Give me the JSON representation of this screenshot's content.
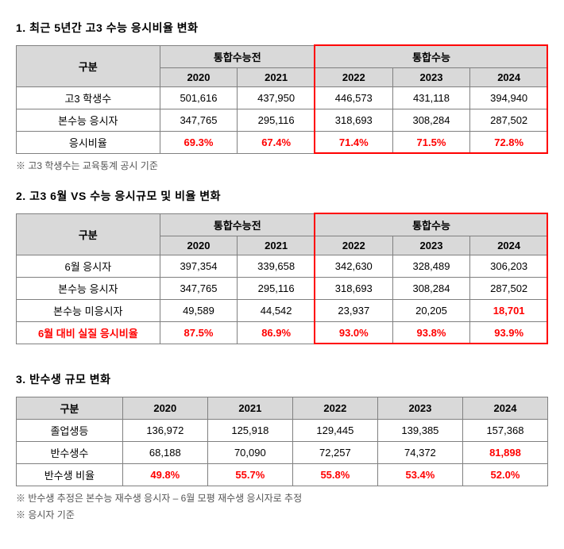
{
  "section1": {
    "title": "1. 최근 5년간 고3 수능 응시비율 변화",
    "header": {
      "category": "구분",
      "group1": "통합수능전",
      "group2": "통합수능",
      "years": [
        "2020",
        "2021",
        "2022",
        "2023",
        "2024"
      ]
    },
    "rows": [
      {
        "label": "고3 학생수",
        "values": [
          "501,616",
          "437,950",
          "446,573",
          "431,118",
          "394,940"
        ],
        "red": false
      },
      {
        "label": "본수능 응시자",
        "values": [
          "347,765",
          "295,116",
          "318,693",
          "308,284",
          "287,502"
        ],
        "red": false
      },
      {
        "label": "응시비율",
        "values": [
          "69.3%",
          "67.4%",
          "71.4%",
          "71.5%",
          "72.8%"
        ],
        "red": true
      }
    ],
    "note": "※ 고3 학생수는 교육통계 공시 기준"
  },
  "section2": {
    "title": "2. 고3 6월 VS 수능 응시규모 및 비율 변화",
    "header": {
      "category": "구분",
      "group1": "통합수능전",
      "group2": "통합수능",
      "years": [
        "2020",
        "2021",
        "2022",
        "2023",
        "2024"
      ]
    },
    "rows": [
      {
        "label": "6월 응시자",
        "values": [
          "397,354",
          "339,658",
          "342,630",
          "328,489",
          "306,203"
        ],
        "redLabel": false,
        "redCells": [
          false,
          false,
          false,
          false,
          false
        ]
      },
      {
        "label": "본수능 응시자",
        "values": [
          "347,765",
          "295,116",
          "318,693",
          "308,284",
          "287,502"
        ],
        "redLabel": false,
        "redCells": [
          false,
          false,
          false,
          false,
          false
        ]
      },
      {
        "label": "본수능 미응시자",
        "values": [
          "49,589",
          "44,542",
          "23,937",
          "20,205",
          "18,701"
        ],
        "redLabel": false,
        "redCells": [
          false,
          false,
          false,
          false,
          true
        ]
      },
      {
        "label": "6월 대비 실질 응시비율",
        "values": [
          "87.5%",
          "86.9%",
          "93.0%",
          "93.8%",
          "93.9%"
        ],
        "redLabel": true,
        "redCells": [
          true,
          true,
          true,
          true,
          true
        ]
      }
    ]
  },
  "section3": {
    "title": "3. 반수생 규모 변화",
    "header": {
      "category": "구분",
      "years": [
        "2020",
        "2021",
        "2022",
        "2023",
        "2024"
      ]
    },
    "rows": [
      {
        "label": "졸업생등",
        "values": [
          "136,972",
          "125,918",
          "129,445",
          "139,385",
          "157,368"
        ],
        "redCells": [
          false,
          false,
          false,
          false,
          false
        ]
      },
      {
        "label": "반수생수",
        "values": [
          "68,188",
          "70,090",
          "72,257",
          "74,372",
          "81,898"
        ],
        "redCells": [
          false,
          false,
          false,
          false,
          true
        ]
      },
      {
        "label": "반수생 비율",
        "values": [
          "49.8%",
          "55.7%",
          "55.8%",
          "53.4%",
          "52.0%"
        ],
        "redCells": [
          true,
          true,
          true,
          true,
          true
        ]
      }
    ],
    "note1": "※ 반수생 추정은 본수능 재수생 응시자 – 6월 모평 재수생 응시자로 추정",
    "note2": "※ 응시자 기준"
  },
  "layout": {
    "categoryColWidth": "27%",
    "yearColWidth": "14.6%",
    "sec3CategoryColWidth": "20%",
    "sec3YearColWidth": "16%"
  }
}
